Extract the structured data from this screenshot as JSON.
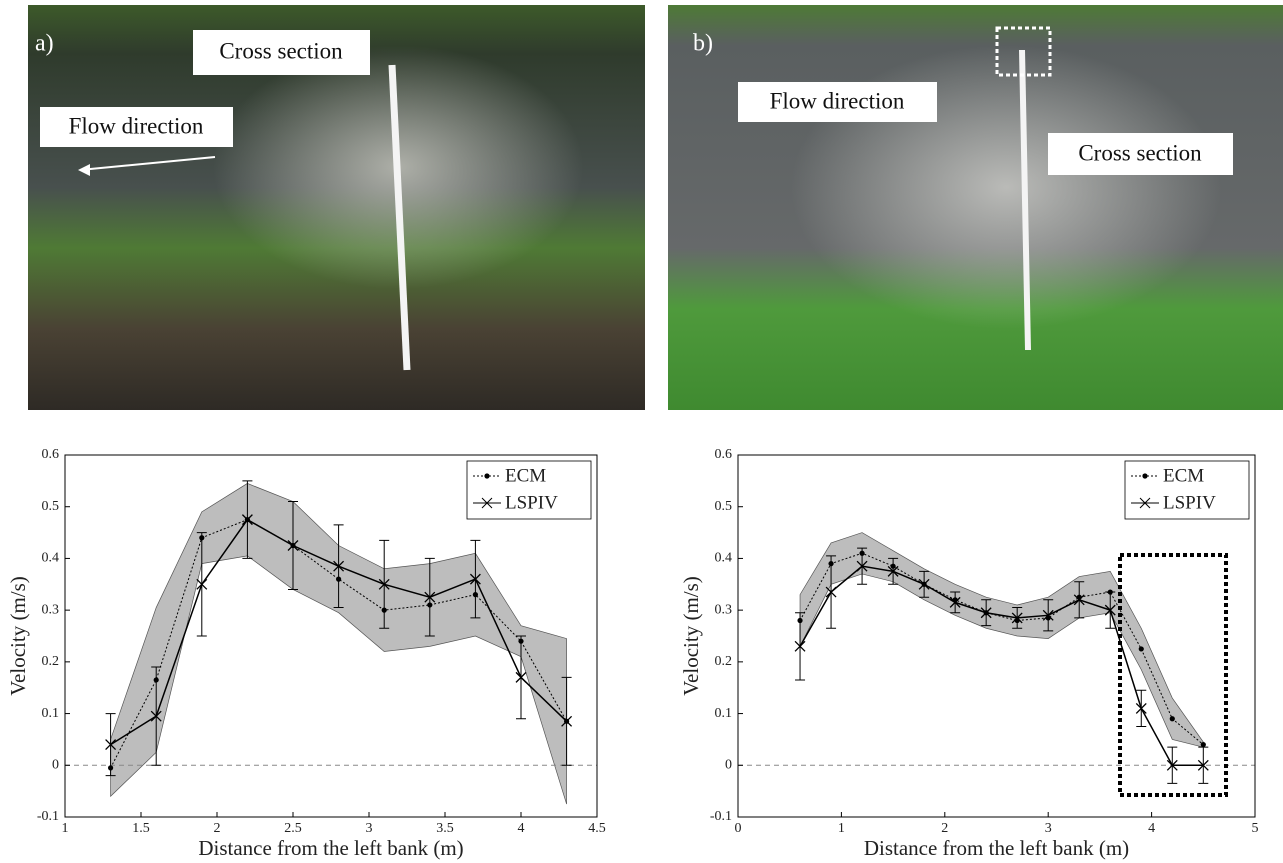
{
  "photos": [
    {
      "label": "a)",
      "annotations": [
        "Cross section",
        "Flow direction"
      ]
    },
    {
      "label": "b)",
      "annotations": [
        "Flow direction",
        "Cross section"
      ]
    }
  ],
  "chart_data": [
    {
      "type": "line",
      "xlabel": "Distance from the left bank (m)",
      "ylabel": "Velocity (m/s)",
      "xlim": [
        1,
        4.5
      ],
      "xticks": [
        1,
        1.5,
        2,
        2.5,
        3,
        3.5,
        4,
        4.5
      ],
      "ylim": [
        -0.1,
        0.6
      ],
      "yticks": [
        -0.1,
        0,
        0.1,
        0.2,
        0.3,
        0.4,
        0.5,
        0.6
      ],
      "legend": "upper right",
      "x": [
        1.3,
        1.6,
        1.9,
        2.2,
        2.5,
        2.8,
        3.1,
        3.4,
        3.7,
        4.0,
        4.3
      ],
      "series": [
        {
          "name": "ECM",
          "color": "#000000",
          "style": "dotted",
          "marker": "dot",
          "values": [
            -0.005,
            0.165,
            0.44,
            0.475,
            0.425,
            0.36,
            0.3,
            0.31,
            0.33,
            0.24,
            0.085
          ],
          "error": [
            0.055,
            0.14,
            0.05,
            0.07,
            0.085,
            0.065,
            0.08,
            0.08,
            0.08,
            0.03,
            0.16
          ]
        },
        {
          "name": "LSPIV",
          "color": "#000000",
          "style": "solid",
          "marker": "x",
          "values": [
            0.04,
            0.095,
            0.35,
            0.475,
            0.425,
            0.385,
            0.35,
            0.325,
            0.36,
            0.17,
            0.085
          ],
          "error": [
            0.06,
            0.095,
            0.1,
            0.075,
            0.085,
            0.08,
            0.085,
            0.075,
            0.075,
            0.08,
            0.085
          ]
        }
      ]
    },
    {
      "type": "line",
      "xlabel": "Distance from the left bank (m)",
      "ylabel": "Velocity (m/s)",
      "xlim": [
        0,
        5
      ],
      "xticks": [
        0,
        1,
        2,
        3,
        4,
        5
      ],
      "ylim": [
        -0.1,
        0.6
      ],
      "yticks": [
        -0.1,
        0,
        0.1,
        0.2,
        0.3,
        0.4,
        0.5,
        0.6
      ],
      "legend": "upper right",
      "x": [
        0.6,
        0.9,
        1.2,
        1.5,
        1.8,
        2.1,
        2.4,
        2.7,
        3.0,
        3.3,
        3.6,
        3.9,
        4.2,
        4.5
      ],
      "series": [
        {
          "name": "ECM",
          "color": "#000000",
          "style": "dotted",
          "marker": "dot",
          "values": [
            0.28,
            0.39,
            0.41,
            0.385,
            0.35,
            0.32,
            0.295,
            0.28,
            0.285,
            0.325,
            0.335,
            0.225,
            0.09,
            0.04
          ],
          "error": [
            0.05,
            0.04,
            0.04,
            0.03,
            0.03,
            0.03,
            0.03,
            0.03,
            0.04,
            0.04,
            0.04,
            0.04,
            0.04,
            0.005
          ]
        },
        {
          "name": "LSPIV",
          "color": "#000000",
          "style": "solid",
          "marker": "x",
          "values": [
            0.23,
            0.335,
            0.385,
            0.375,
            0.35,
            0.315,
            0.295,
            0.285,
            0.29,
            0.32,
            0.3,
            0.11,
            0,
            0
          ],
          "error": [
            0.065,
            0.07,
            0.035,
            0.025,
            0.025,
            0.02,
            0.025,
            0.02,
            0.03,
            0.035,
            0.035,
            0.035,
            0.035,
            0.035
          ]
        }
      ]
    }
  ]
}
